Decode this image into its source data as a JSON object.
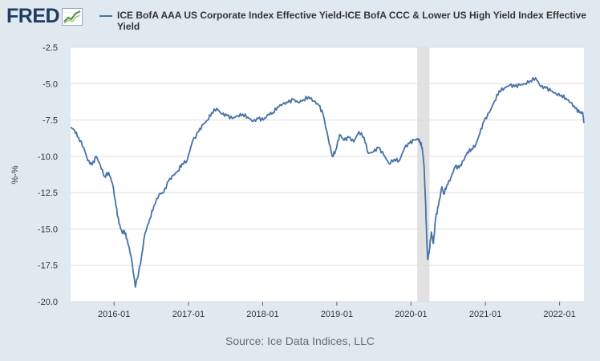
{
  "header": {
    "logo_text": "FRED",
    "logo_icon": "chart-line-icon"
  },
  "source_text": "Source: Ice Data Indices, LLC",
  "colors": {
    "series": "#4572a7",
    "recession": "#e1e1e1",
    "plot_background": "#ffffff",
    "page_background": "#e1e9f0",
    "grid": "#dddddd"
  },
  "chart_data": {
    "type": "line",
    "title": "",
    "xlabel": "",
    "ylabel": "%-%",
    "ylim": [
      -20.0,
      -2.5
    ],
    "xlim": [
      "2015-06-01",
      "2022-05-01"
    ],
    "y_ticks": [
      -2.5,
      -5.0,
      -7.5,
      -10.0,
      -12.5,
      -15.0,
      -17.5,
      -20.0
    ],
    "y_tick_labels": [
      "-2.5",
      "-5.0",
      "-7.5",
      "-10.0",
      "-12.5",
      "-15.0",
      "-17.5",
      "-20.0"
    ],
    "x_ticks": [
      "2016-01-01",
      "2017-01-01",
      "2018-01-01",
      "2019-01-01",
      "2020-01-01",
      "2021-01-01",
      "2022-01-01"
    ],
    "x_tick_labels": [
      "2016-01",
      "2017-01",
      "2018-01",
      "2019-01",
      "2020-01",
      "2021-01",
      "2022-01"
    ],
    "grid": true,
    "legend_position": "top",
    "shaded_periods": [
      {
        "start": "2020-02-01",
        "end": "2020-04-01"
      }
    ],
    "series": [
      {
        "name": "ICE BofA AAA US Corporate Index Effective Yield-ICE BofA CCC & Lower US High Yield Index Effective Yield",
        "x": [
          "2015-06-01",
          "2015-06-20",
          "2015-07-10",
          "2015-08-05",
          "2015-08-25",
          "2015-09-15",
          "2015-10-05",
          "2015-10-25",
          "2015-11-15",
          "2015-12-05",
          "2015-12-25",
          "2016-01-10",
          "2016-01-25",
          "2016-02-11",
          "2016-02-20",
          "2016-03-05",
          "2016-03-25",
          "2016-04-15",
          "2016-05-10",
          "2016-06-01",
          "2016-06-25",
          "2016-07-15",
          "2016-08-10",
          "2016-09-01",
          "2016-09-25",
          "2016-10-20",
          "2016-11-10",
          "2016-12-01",
          "2016-12-25",
          "2017-01-20",
          "2017-02-20",
          "2017-03-15",
          "2017-04-05",
          "2017-04-25",
          "2017-05-20",
          "2017-06-15",
          "2017-07-10",
          "2017-08-05",
          "2017-09-01",
          "2017-09-25",
          "2017-10-20",
          "2017-11-15",
          "2017-12-10",
          "2018-01-05",
          "2018-01-30",
          "2018-02-20",
          "2018-03-15",
          "2018-04-10",
          "2018-05-05",
          "2018-06-01",
          "2018-06-25",
          "2018-07-20",
          "2018-08-15",
          "2018-09-10",
          "2018-10-05",
          "2018-10-25",
          "2018-11-20",
          "2018-12-10",
          "2018-12-26",
          "2019-01-15",
          "2019-02-05",
          "2019-03-01",
          "2019-03-25",
          "2019-04-20",
          "2019-05-15",
          "2019-06-05",
          "2019-06-30",
          "2019-07-25",
          "2019-08-20",
          "2019-09-15",
          "2019-10-10",
          "2019-11-05",
          "2019-12-01",
          "2019-12-25",
          "2020-01-15",
          "2020-02-05",
          "2020-02-15",
          "2020-02-25",
          "2020-03-05",
          "2020-03-12",
          "2020-03-18",
          "2020-03-23",
          "2020-03-31",
          "2020-04-10",
          "2020-04-20",
          "2020-05-01",
          "2020-05-15",
          "2020-06-01",
          "2020-06-10",
          "2020-06-25",
          "2020-07-15",
          "2020-08-05",
          "2020-08-25",
          "2020-09-15",
          "2020-10-05",
          "2020-10-25",
          "2020-11-15",
          "2020-12-05",
          "2020-12-25",
          "2021-01-20",
          "2021-02-15",
          "2021-03-10",
          "2021-04-05",
          "2021-05-01",
          "2021-05-25",
          "2021-06-20",
          "2021-07-15",
          "2021-08-10",
          "2021-09-05",
          "2021-10-01",
          "2021-10-25",
          "2021-11-20",
          "2021-12-15",
          "2022-01-10",
          "2022-02-01",
          "2022-02-25",
          "2022-03-20",
          "2022-04-10",
          "2022-04-25",
          "2022-05-01"
        ],
        "y": [
          -8.0,
          -8.2,
          -8.7,
          -9.4,
          -10.3,
          -10.6,
          -10.0,
          -10.6,
          -11.4,
          -11.1,
          -11.9,
          -13.4,
          -14.6,
          -15.3,
          -15.1,
          -15.7,
          -16.9,
          -19.0,
          -17.4,
          -15.3,
          -14.3,
          -13.4,
          -12.6,
          -12.5,
          -11.7,
          -11.3,
          -11.0,
          -10.5,
          -10.3,
          -9.0,
          -8.3,
          -7.8,
          -7.5,
          -7.0,
          -6.7,
          -7.1,
          -7.2,
          -7.4,
          -7.2,
          -7.1,
          -7.3,
          -7.6,
          -7.4,
          -7.5,
          -7.1,
          -7.0,
          -6.6,
          -6.4,
          -6.3,
          -6.1,
          -6.3,
          -6.1,
          -5.9,
          -6.2,
          -6.5,
          -7.1,
          -8.8,
          -10.0,
          -9.6,
          -8.5,
          -8.9,
          -8.7,
          -9.0,
          -8.3,
          -8.7,
          -9.8,
          -9.7,
          -9.4,
          -9.9,
          -10.5,
          -10.2,
          -10.3,
          -9.4,
          -9.1,
          -8.9,
          -8.8,
          -9.0,
          -9.4,
          -10.6,
          -13.0,
          -15.5,
          -17.1,
          -16.5,
          -15.2,
          -16.0,
          -14.3,
          -13.4,
          -12.1,
          -12.6,
          -12.0,
          -11.5,
          -10.7,
          -10.8,
          -10.3,
          -9.7,
          -9.5,
          -9.2,
          -8.4,
          -7.6,
          -7.0,
          -6.2,
          -5.5,
          -5.3,
          -5.1,
          -5.2,
          -5.1,
          -5.0,
          -4.8,
          -4.6,
          -5.2,
          -5.3,
          -5.5,
          -5.7,
          -5.8,
          -6.0,
          -6.3,
          -6.7,
          -7.0,
          -7.0,
          -7.7
        ]
      }
    ]
  }
}
